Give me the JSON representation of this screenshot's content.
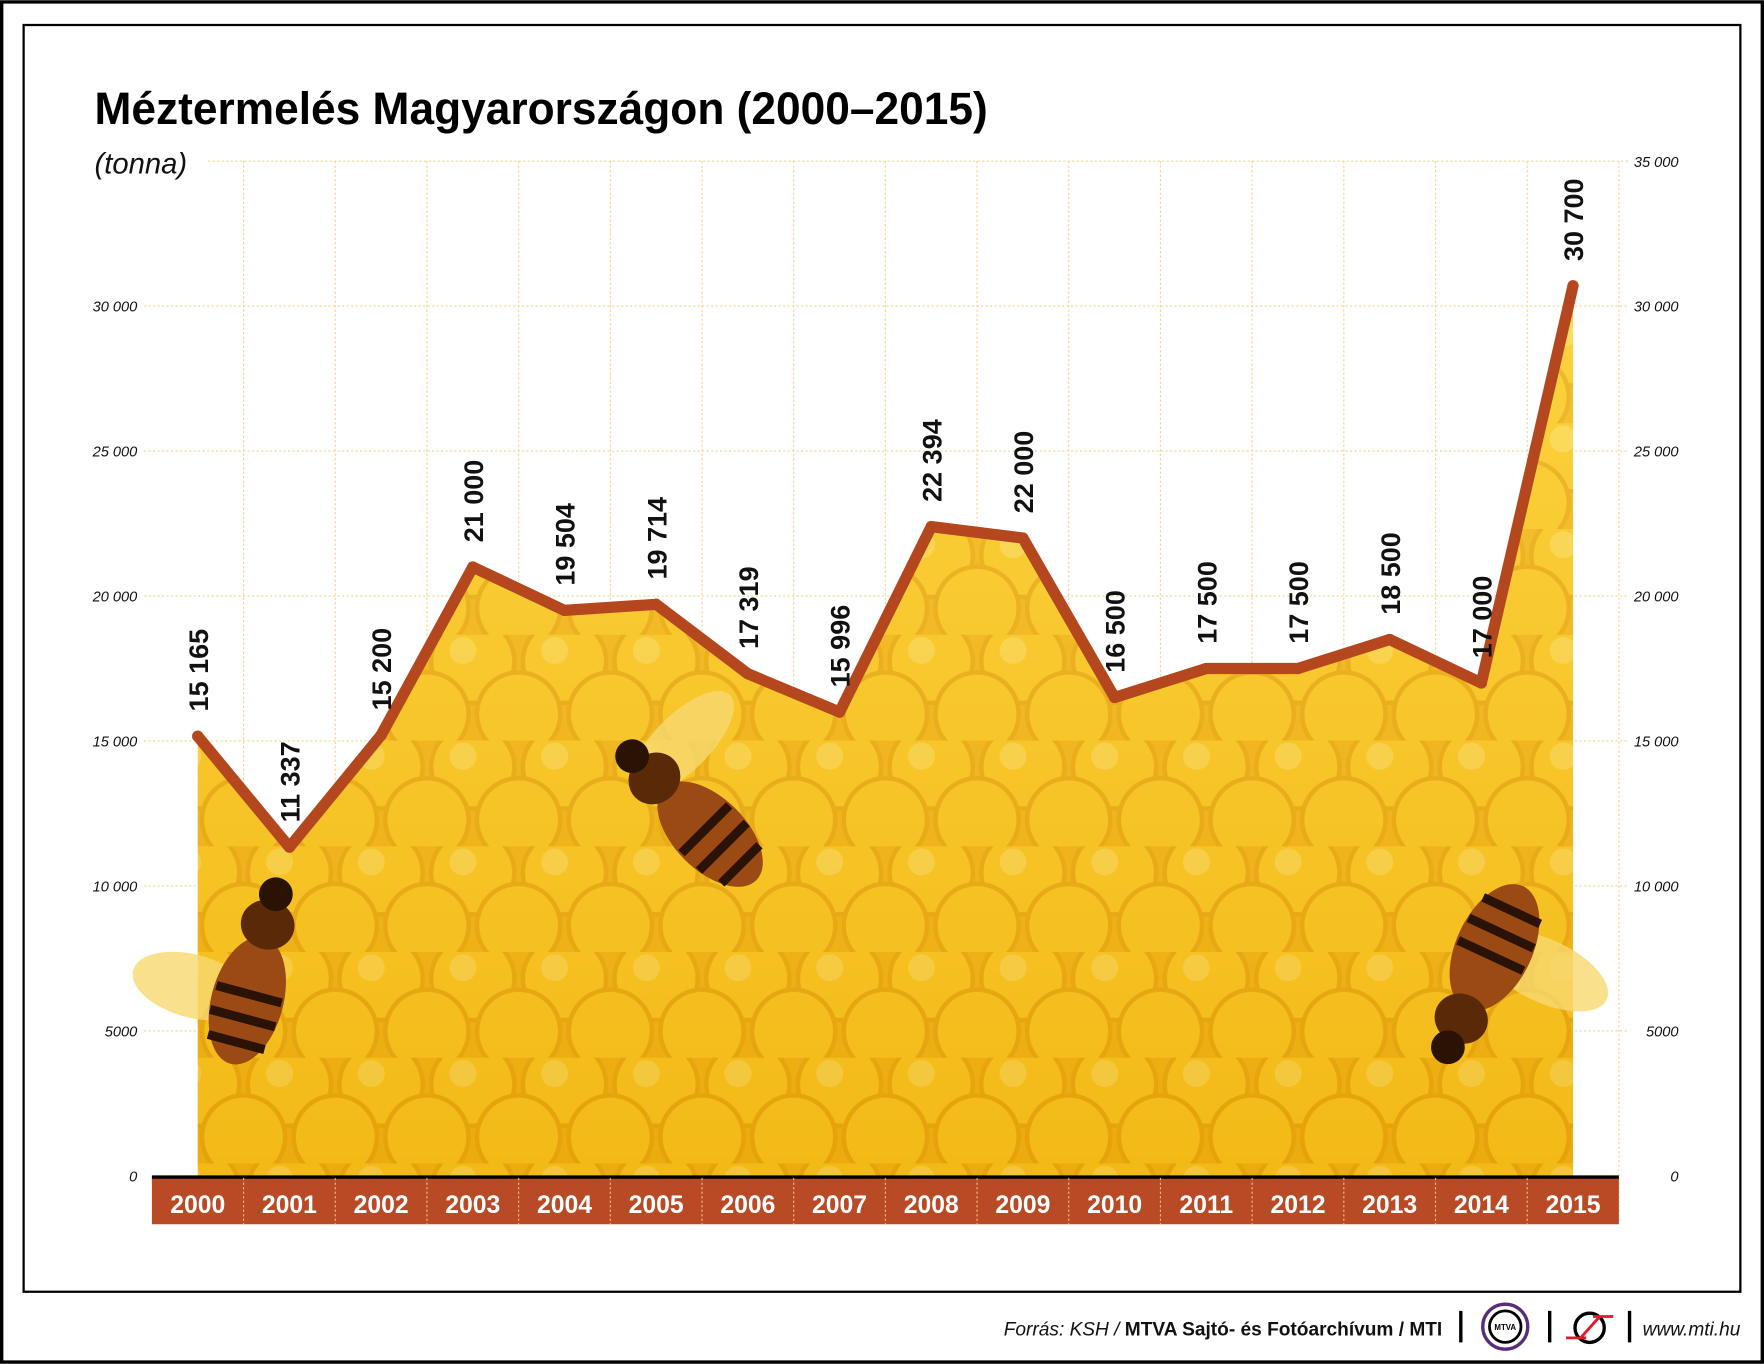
{
  "chart_data": {
    "type": "line",
    "title": "Méztermelés Magyarországon (2000–2015)",
    "ylabel": "(tonna)",
    "xlabel": "",
    "categories": [
      "2000",
      "2001",
      "2002",
      "2003",
      "2004",
      "2005",
      "2006",
      "2007",
      "2008",
      "2009",
      "2010",
      "2011",
      "2012",
      "2013",
      "2014",
      "2015"
    ],
    "values": [
      15165,
      11337,
      15200,
      21000,
      19504,
      19714,
      17319,
      15996,
      22394,
      22000,
      16500,
      17500,
      17500,
      18500,
      17000,
      30700
    ],
    "data_labels": [
      "15 165",
      "11 337",
      "15 200",
      "21 000",
      "19 504",
      "19 714",
      "17 319",
      "15 996",
      "22 394",
      "22 000",
      "16 500",
      "17 500",
      "17 500",
      "18 500",
      "17 000",
      "30 700"
    ],
    "ylim": [
      0,
      35000
    ],
    "yticks": [
      0,
      5000,
      10000,
      15000,
      20000,
      25000,
      30000,
      35000
    ],
    "ytick_labels_left": [
      "0",
      "5000",
      "10 000",
      "15 000",
      "20 000",
      "25 000",
      "30 000",
      ""
    ],
    "ytick_labels_right": [
      "0",
      "5000",
      "10 000",
      "15 000",
      "20 000",
      "25 000",
      "30 000",
      "35 000"
    ],
    "grid": true,
    "line_color": "#b5471f",
    "year_bar_color": "#b84a25",
    "fill": "honeycomb"
  },
  "footer": {
    "source_prefix": "Forrás: KSH / ",
    "source_bold": "MTVA Sajtó- és Fotóarchívum / MTI",
    "mtva_logo": "MTVA",
    "website": "www.mti.hu"
  }
}
